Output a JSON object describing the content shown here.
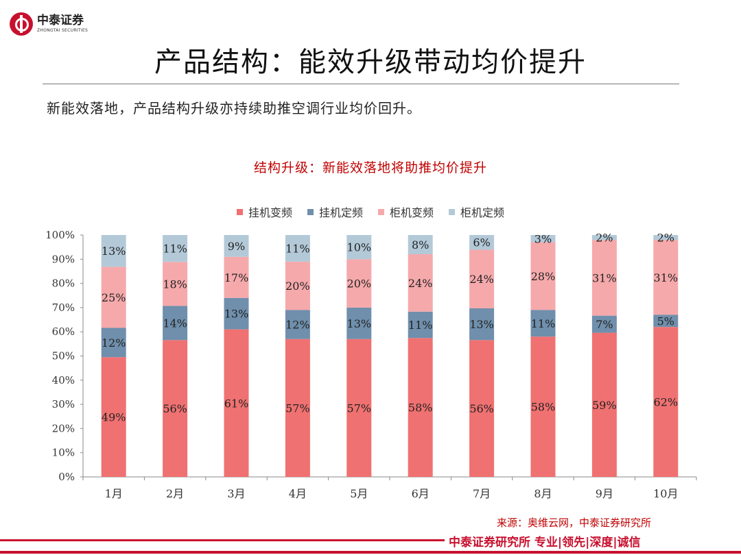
{
  "logo": {
    "name_cn": "中泰证券",
    "name_en": "ZHONGTAI SECURITIES"
  },
  "title": "产品结构：能效升级带动均价提升",
  "subtitle": "新能效落地，产品结构升级亦持续助推空调行业均价回升。",
  "source": "来源：奥维云网，中泰证券研究所",
  "footer": {
    "slogan": "中泰证券研究所 专业|领先|深度|诚信"
  },
  "colors": {
    "wall_vfreq": "#f07171",
    "wall_fixed": "#6f8fac",
    "cab_vfreq": "#f5a9ab",
    "cab_fixed": "#b3c9d8",
    "accent": "#c8102e"
  },
  "chart_data": {
    "type": "bar",
    "stacked": true,
    "title": "结构升级：新能效落地将助推均价提升",
    "categories": [
      "1月",
      "2月",
      "3月",
      "4月",
      "5月",
      "6月",
      "7月",
      "8月",
      "9月",
      "10月"
    ],
    "series": [
      {
        "name": "挂机变频",
        "values": [
          49,
          56,
          61,
          57,
          57,
          58,
          56,
          58,
          59,
          62
        ],
        "labels": [
          "49%",
          "56%",
          "61%",
          "57%",
          "57%",
          "58%",
          "56%",
          "58%",
          "59%",
          "62%"
        ]
      },
      {
        "name": "挂机定频",
        "values": [
          12,
          14,
          13,
          12,
          13,
          11,
          13,
          11,
          7,
          5
        ],
        "labels": [
          "12%",
          "14%",
          "13%",
          "12%",
          "13%",
          "11%",
          "13%",
          "11%",
          "7%",
          "5%"
        ]
      },
      {
        "name": "柜机变频",
        "values": [
          25,
          18,
          17,
          20,
          20,
          24,
          24,
          28,
          31,
          31
        ],
        "labels": [
          "25%",
          "18%",
          "17%",
          "20%",
          "20%",
          "24%",
          "24%",
          "28%",
          "31%",
          "31%"
        ]
      },
      {
        "name": "柜机定频",
        "values": [
          13,
          11,
          9,
          11,
          10,
          8,
          6,
          3,
          2,
          2
        ],
        "labels": [
          "13%",
          "11%",
          "9%",
          "11%",
          "10%",
          "8%",
          "6%",
          "3%",
          "2%",
          "2%"
        ]
      }
    ],
    "y_ticks": [
      "0%",
      "10%",
      "20%",
      "30%",
      "40%",
      "50%",
      "60%",
      "70%",
      "80%",
      "90%",
      "100%"
    ],
    "ylim": [
      0,
      100
    ],
    "legend": "top-center",
    "grid": false
  }
}
